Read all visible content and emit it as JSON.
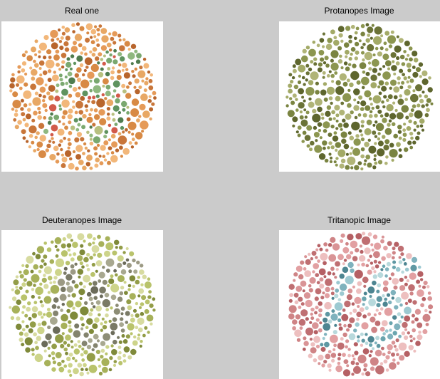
{
  "panels": [
    {
      "title": "Real one",
      "plate": "ishihara-plate",
      "palette": {
        "background": [
          "#e8a865",
          "#d88a45",
          "#f2b77a",
          "#c8763a",
          "#e59a58",
          "#b8652c"
        ],
        "figure": [
          "#7aa86f",
          "#5f935f",
          "#8fb87f",
          "#b7c07f",
          "#d25a4a",
          "#4f7c4f"
        ]
      }
    },
    {
      "title": "Protanopes Image",
      "plate": "ishihara-plate",
      "palette": {
        "background": [
          "#8c9650",
          "#7a8441",
          "#a3aa67",
          "#6b7337",
          "#b0b477",
          "#5e662e"
        ],
        "figure": [
          "#8c9650",
          "#7a8441",
          "#a3aa67",
          "#6b7337",
          "#b0b477",
          "#5e662e"
        ]
      }
    },
    {
      "title": "Deuteranopes Image",
      "plate": "ishihara-plate",
      "palette": {
        "background": [
          "#b9c36c",
          "#a7b15a",
          "#cdd48a",
          "#939d48",
          "#d7dba0",
          "#7f8a3a"
        ],
        "figure": [
          "#8d8d76",
          "#7a7a66",
          "#9c9a84",
          "#6b6b5a",
          "#a8a890",
          "#84846f"
        ]
      }
    },
    {
      "title": "Tritanopic Image",
      "plate": "ishihara-plate",
      "palette": {
        "background": [
          "#e2a0a2",
          "#cf8486",
          "#edbfbf",
          "#bf6f72",
          "#d99496",
          "#b56064"
        ],
        "figure": [
          "#7fb2bd",
          "#5f98a3",
          "#9cc9d1",
          "#4d8591",
          "#b8d9dc",
          "#6aa5ae"
        ]
      }
    }
  ]
}
